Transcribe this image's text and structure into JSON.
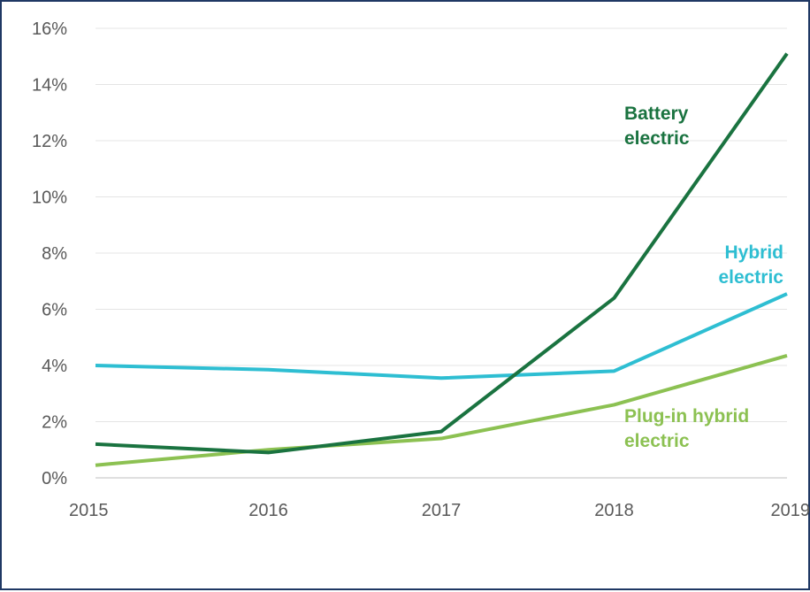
{
  "chart_data": {
    "type": "line",
    "x": [
      2015,
      2016,
      2017,
      2018,
      2019
    ],
    "y_ticks": [
      "0%",
      "2%",
      "4%",
      "6%",
      "8%",
      "10%",
      "12%",
      "14%",
      "16%"
    ],
    "x_ticks": [
      "2015",
      "2016",
      "2017",
      "2018",
      "2019"
    ],
    "ylim": [
      0,
      16
    ],
    "grid": true,
    "legend": "inline labels next to lines",
    "series": [
      {
        "name": "Battery electric",
        "label_lines": [
          "Battery",
          "electric"
        ],
        "values": [
          1.2,
          0.9,
          1.65,
          6.4,
          15.1
        ],
        "color": "#1a7340"
      },
      {
        "name": "Hybrid electric",
        "label_lines": [
          "Hybrid",
          "electric"
        ],
        "values": [
          4.0,
          3.85,
          3.55,
          3.8,
          6.55
        ],
        "color": "#2ebed2"
      },
      {
        "name": "Plug-in hybrid electric",
        "label_lines": [
          "Plug-in hybrid",
          "electric"
        ],
        "values": [
          0.45,
          1.0,
          1.4,
          2.6,
          4.35
        ],
        "color": "#8cc152"
      }
    ]
  }
}
